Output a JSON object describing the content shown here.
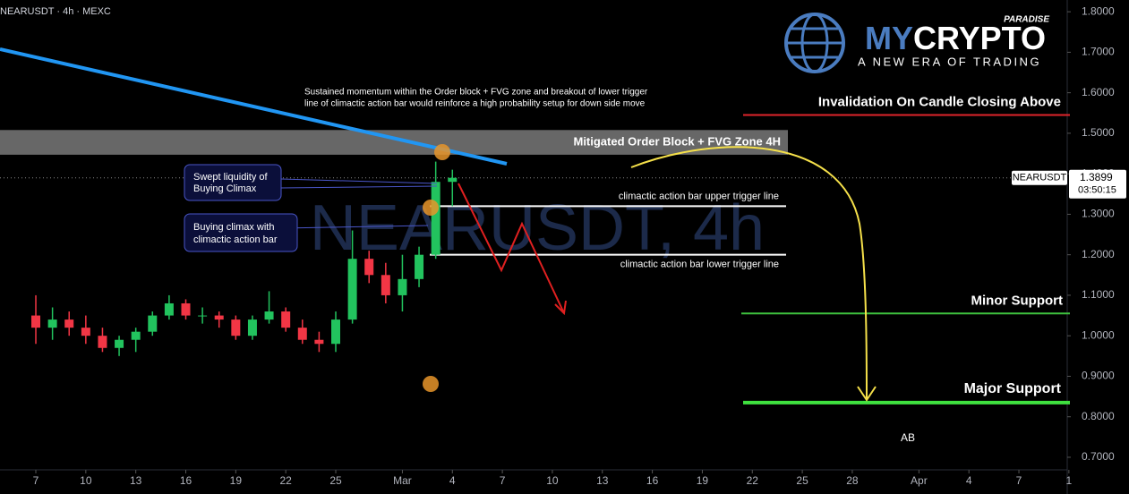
{
  "chart_data": {
    "type": "candlestick",
    "title": "NEARUSDT · 4h · MEXC",
    "watermark": "NEARUSDT, 4h",
    "x": [
      0,
      1,
      2,
      3,
      4,
      5,
      6,
      7,
      8,
      9,
      10,
      11,
      12,
      13,
      14,
      15,
      16,
      17,
      18,
      19,
      20,
      21,
      22,
      23,
      24,
      25
    ],
    "open": [
      1.05,
      1.02,
      1.04,
      1.02,
      1.0,
      0.97,
      0.99,
      1.01,
      1.05,
      1.08,
      1.05,
      1.05,
      1.04,
      1.0,
      1.04,
      1.06,
      1.02,
      0.99,
      0.98,
      1.04,
      1.19,
      1.15,
      1.1,
      1.14,
      1.2,
      1.38
    ],
    "high": [
      1.1,
      1.07,
      1.06,
      1.05,
      1.02,
      1.0,
      1.02,
      1.06,
      1.1,
      1.09,
      1.07,
      1.06,
      1.05,
      1.05,
      1.11,
      1.07,
      1.04,
      1.01,
      1.06,
      1.26,
      1.21,
      1.18,
      1.2,
      1.22,
      1.43,
      1.41
    ],
    "low": [
      0.98,
      0.99,
      1.0,
      0.98,
      0.96,
      0.95,
      0.96,
      1.0,
      1.04,
      1.04,
      1.03,
      1.02,
      0.99,
      0.99,
      1.03,
      1.01,
      0.98,
      0.96,
      0.96,
      1.03,
      1.13,
      1.08,
      1.06,
      1.12,
      1.19,
      1.32
    ],
    "close": [
      1.02,
      1.04,
      1.02,
      1.0,
      0.97,
      0.99,
      1.01,
      1.05,
      1.08,
      1.05,
      1.05,
      1.04,
      1.0,
      1.04,
      1.06,
      1.02,
      0.99,
      0.98,
      1.04,
      1.19,
      1.15,
      1.1,
      1.14,
      1.2,
      1.38,
      1.39
    ],
    "up_color": "#22c35e",
    "down_color": "#f23645",
    "xlim": [
      -2.15,
      61.9
    ],
    "xticks": [
      {
        "value": 0,
        "label": "7"
      },
      {
        "value": 3,
        "label": "10"
      },
      {
        "value": 6,
        "label": "13"
      },
      {
        "value": 9,
        "label": "16"
      },
      {
        "value": 12,
        "label": "19"
      },
      {
        "value": 15,
        "label": "22"
      },
      {
        "value": 18,
        "label": "25"
      },
      {
        "value": 22,
        "label": "Mar"
      },
      {
        "value": 25,
        "label": "4"
      },
      {
        "value": 28,
        "label": "7"
      },
      {
        "value": 31,
        "label": "10"
      },
      {
        "value": 34,
        "label": "13"
      },
      {
        "value": 37,
        "label": "16"
      },
      {
        "value": 40,
        "label": "19"
      },
      {
        "value": 43,
        "label": "22"
      },
      {
        "value": 46,
        "label": "25"
      },
      {
        "value": 49,
        "label": "28"
      },
      {
        "value": 53,
        "label": "Apr"
      },
      {
        "value": 56,
        "label": "4"
      },
      {
        "value": 59,
        "label": "7"
      },
      {
        "value": 62,
        "label": "1"
      }
    ],
    "ylim": [
      0.669,
      1.829
    ],
    "yticks": [
      {
        "value": 0.7,
        "label": "0.7000"
      },
      {
        "value": 0.8,
        "label": "0.8000"
      },
      {
        "value": 0.9,
        "label": "0.9000"
      },
      {
        "value": 1.0,
        "label": "1.0000"
      },
      {
        "value": 1.1,
        "label": "1.1000"
      },
      {
        "value": 1.2,
        "label": "1.2000"
      },
      {
        "value": 1.3,
        "label": "1.3000"
      },
      {
        "value": 1.4,
        "label": "1.4000"
      },
      {
        "value": 1.5,
        "label": "1.5000"
      },
      {
        "value": 1.6,
        "label": "1.6000"
      },
      {
        "value": 1.7,
        "label": "1.7000"
      },
      {
        "value": 1.8,
        "label": "1.8000"
      }
    ],
    "last_price": {
      "value": 1.3899,
      "label": "1.3899",
      "symbol": "NEARUSDT",
      "countdown": "03:50:15"
    },
    "zone": {
      "label": "Mitigated Order Block + FVG Zone 4H",
      "low": 1.447,
      "high": 1.508
    },
    "levels": [
      {
        "name": "Invalidation On Candle Closing Above",
        "value": 1.545,
        "color": "#e0242b"
      },
      {
        "name": "Minor Support",
        "value": 1.055,
        "color": "#3fc33f"
      },
      {
        "name": "Major Support",
        "value": 0.835,
        "color": "#3fe13f"
      },
      {
        "name": "climactic action bar upper trigger line",
        "value": 1.32,
        "color": "#ffffff"
      },
      {
        "name": "climactic action bar lower trigger line",
        "value": 1.2,
        "color": "#ffffff"
      }
    ],
    "note": [
      "Sustained momentum within the Order block + FVG zone and breakout of lower trigger",
      "line of climactic action bar would reinforce a high probability setup for down side move"
    ],
    "callouts": [
      [
        "Swept liquidity of",
        "Buying Climax"
      ],
      [
        "Buying climax with",
        "climactic action bar"
      ]
    ],
    "marker": "AB"
  },
  "logo": {
    "tag": "PARADISE",
    "brand_a": "MY",
    "brand_b": "CRYPTO",
    "slogan": "A NEW ERA OF TRADING"
  }
}
